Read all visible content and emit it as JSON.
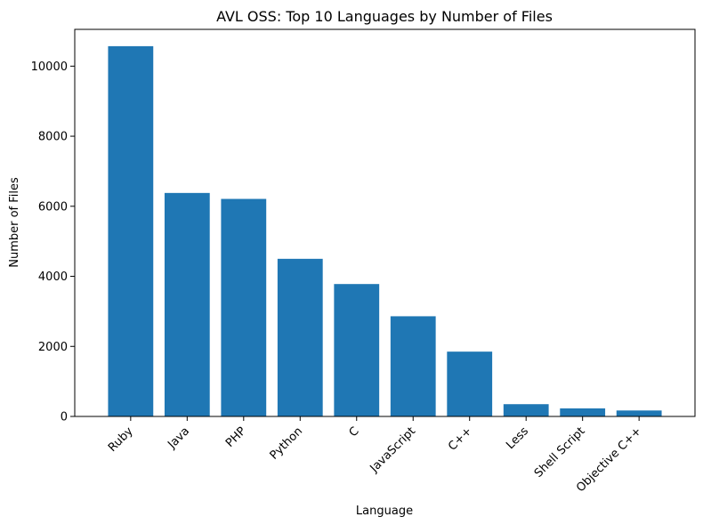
{
  "chart_data": {
    "type": "bar",
    "title": "AVL OSS: Top 10 Languages by Number of Files",
    "xlabel": "Language",
    "ylabel": "Number of Files",
    "categories": [
      "Ruby",
      "Java",
      "PHP",
      "Python",
      "C",
      "JavaScript",
      "C++",
      "Less",
      "Shell Script",
      "Objective C++"
    ],
    "values": [
      10570,
      6380,
      6210,
      4500,
      3780,
      2860,
      1850,
      350,
      230,
      170
    ],
    "ylim": [
      0,
      11050
    ],
    "yticks": [
      0,
      2000,
      4000,
      6000,
      8000,
      10000
    ],
    "ytick_labels": [
      "0",
      "2000",
      "4000",
      "6000",
      "8000",
      "10000"
    ],
    "bar_color": "#1f77b4",
    "grid": false,
    "legend": "none"
  }
}
